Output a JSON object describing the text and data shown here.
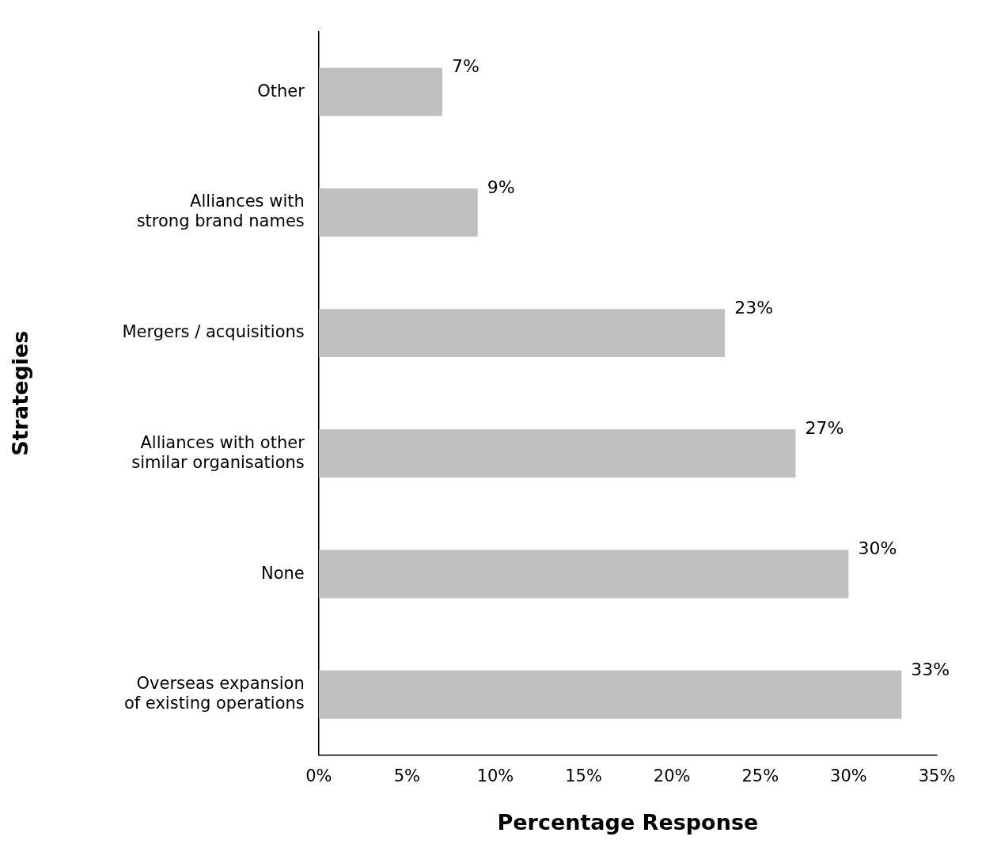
{
  "chart_data": {
    "type": "bar",
    "orientation": "horizontal",
    "xlabel": "Percentage Response",
    "ylabel": "Strategies",
    "categories": [
      "Other",
      "Alliances with\nstrong brand names",
      "Mergers / acquisitions",
      "Alliances with other\nsimilar organisations",
      "None",
      "Overseas expansion\nof existing operations"
    ],
    "values": [
      7,
      9,
      23,
      27,
      30,
      33
    ],
    "value_labels": [
      "7%",
      "9%",
      "23%",
      "27%",
      "30%",
      "33%"
    ],
    "color": "#c0c0c0",
    "xlim": [
      0,
      35
    ],
    "xticks": [
      {
        "value": 0,
        "label": "0%"
      },
      {
        "value": 5,
        "label": "5%"
      },
      {
        "value": 10,
        "label": "10%"
      },
      {
        "value": 15,
        "label": "15%"
      },
      {
        "value": 20,
        "label": "20%"
      },
      {
        "value": 25,
        "label": "25%"
      },
      {
        "value": 30,
        "label": "30%"
      },
      {
        "value": 35,
        "label": "35%"
      }
    ],
    "grid": false,
    "legend": false
  }
}
